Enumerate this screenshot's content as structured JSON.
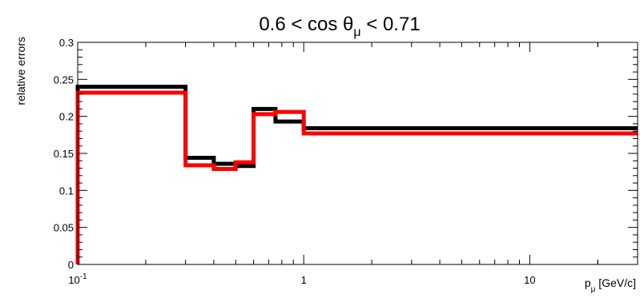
{
  "chart_data": {
    "type": "line",
    "step": true,
    "title": {
      "prefix": "0.6 < cos θ",
      "subscript": "μ",
      "suffix": " < 0.71"
    },
    "xlabel": {
      "symbol": "p",
      "subscript": "μ",
      "unit": " [GeV/c]"
    },
    "ylabel": "relative errors",
    "x_scale": "log",
    "xlim": [
      0.1,
      30
    ],
    "ylim": [
      0,
      0.3
    ],
    "x_ticks": [
      {
        "value": 0.1,
        "base": "10",
        "exp": "-1"
      },
      {
        "value": 1,
        "base": "1",
        "exp": ""
      },
      {
        "value": 10,
        "base": "10",
        "exp": ""
      }
    ],
    "y_ticks": [
      "0",
      "0.05",
      "0.1",
      "0.15",
      "0.2",
      "0.25",
      "0.3"
    ],
    "grid": false,
    "legend": "none",
    "bin_edges": [
      0.1,
      0.3,
      0.4,
      0.5,
      0.6,
      0.75,
      1.0,
      30
    ],
    "series": [
      {
        "color": "#000000",
        "values": [
          0.24,
          0.144,
          0.136,
          0.133,
          0.21,
          0.193,
          0.184
        ]
      },
      {
        "color": "#ff0000",
        "values": [
          0.232,
          0.134,
          0.129,
          0.138,
          0.203,
          0.206,
          0.177
        ]
      }
    ]
  }
}
